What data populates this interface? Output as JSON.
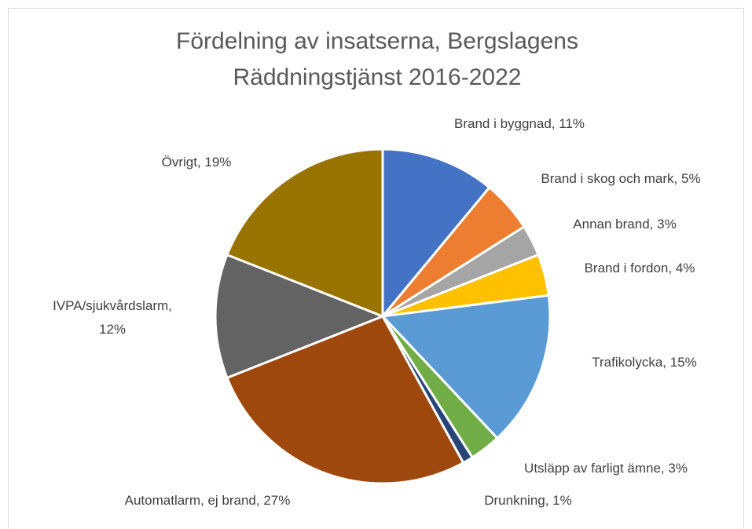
{
  "chart_data": {
    "type": "pie",
    "title": "Fördelning av insatserna, Bergslagens Räddningstjänst 2016-2022",
    "values": [
      11,
      5,
      3,
      4,
      15,
      3,
      1,
      27,
      12,
      19
    ],
    "value_labels": [
      "Brand i byggnad, 11%",
      "Brand i skog och mark, 5%",
      "Annan brand, 3%",
      "Brand i fordon, 4%",
      "Trafikolycka, 15%",
      "Utsläpp av farligt ämne, 3%",
      "Drunkning, 1%",
      "Automatlarm, ej brand, 27%",
      "IVPA/sjukvårdslarm, 12%",
      "Övrigt, 19%"
    ],
    "colors": [
      "#4472c4",
      "#ed7d31",
      "#a5a5a5",
      "#ffc000",
      "#5b9bd5",
      "#70ad47",
      "#264478",
      "#9e480e",
      "#636363",
      "#997300"
    ]
  }
}
